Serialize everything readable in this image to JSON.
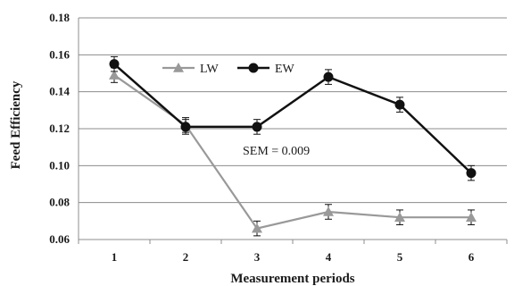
{
  "chart_data": {
    "type": "line",
    "title": "",
    "xlabel": "Measurement periods",
    "ylabel": "Feed Efficiency",
    "x": [
      1,
      2,
      3,
      4,
      5,
      6
    ],
    "x_tick_labels": [
      "1",
      "2",
      "3",
      "4",
      "5",
      "6"
    ],
    "ylim": [
      0.06,
      0.18
    ],
    "y_ticks": [
      0.06,
      0.08,
      0.1,
      0.12,
      0.14,
      0.16,
      0.18
    ],
    "y_tick_labels": [
      "0.06",
      "0.08",
      "0.10",
      "0.12",
      "0.14",
      "0.16",
      "0.18"
    ],
    "grid": "horizontal",
    "legend_position": "top-center",
    "annotation": "SEM = 0.009",
    "series": [
      {
        "name": "LW",
        "marker": "triangle",
        "color": "#999999",
        "values": [
          0.149,
          0.122,
          0.066,
          0.075,
          0.072,
          0.072
        ],
        "errors": [
          0.004,
          0.004,
          0.004,
          0.004,
          0.004,
          0.004
        ]
      },
      {
        "name": "EW",
        "marker": "circle",
        "color": "#111111",
        "values": [
          0.155,
          0.121,
          0.121,
          0.148,
          0.133,
          0.096
        ],
        "errors": [
          0.004,
          0.004,
          0.004,
          0.004,
          0.004,
          0.004
        ]
      }
    ]
  }
}
